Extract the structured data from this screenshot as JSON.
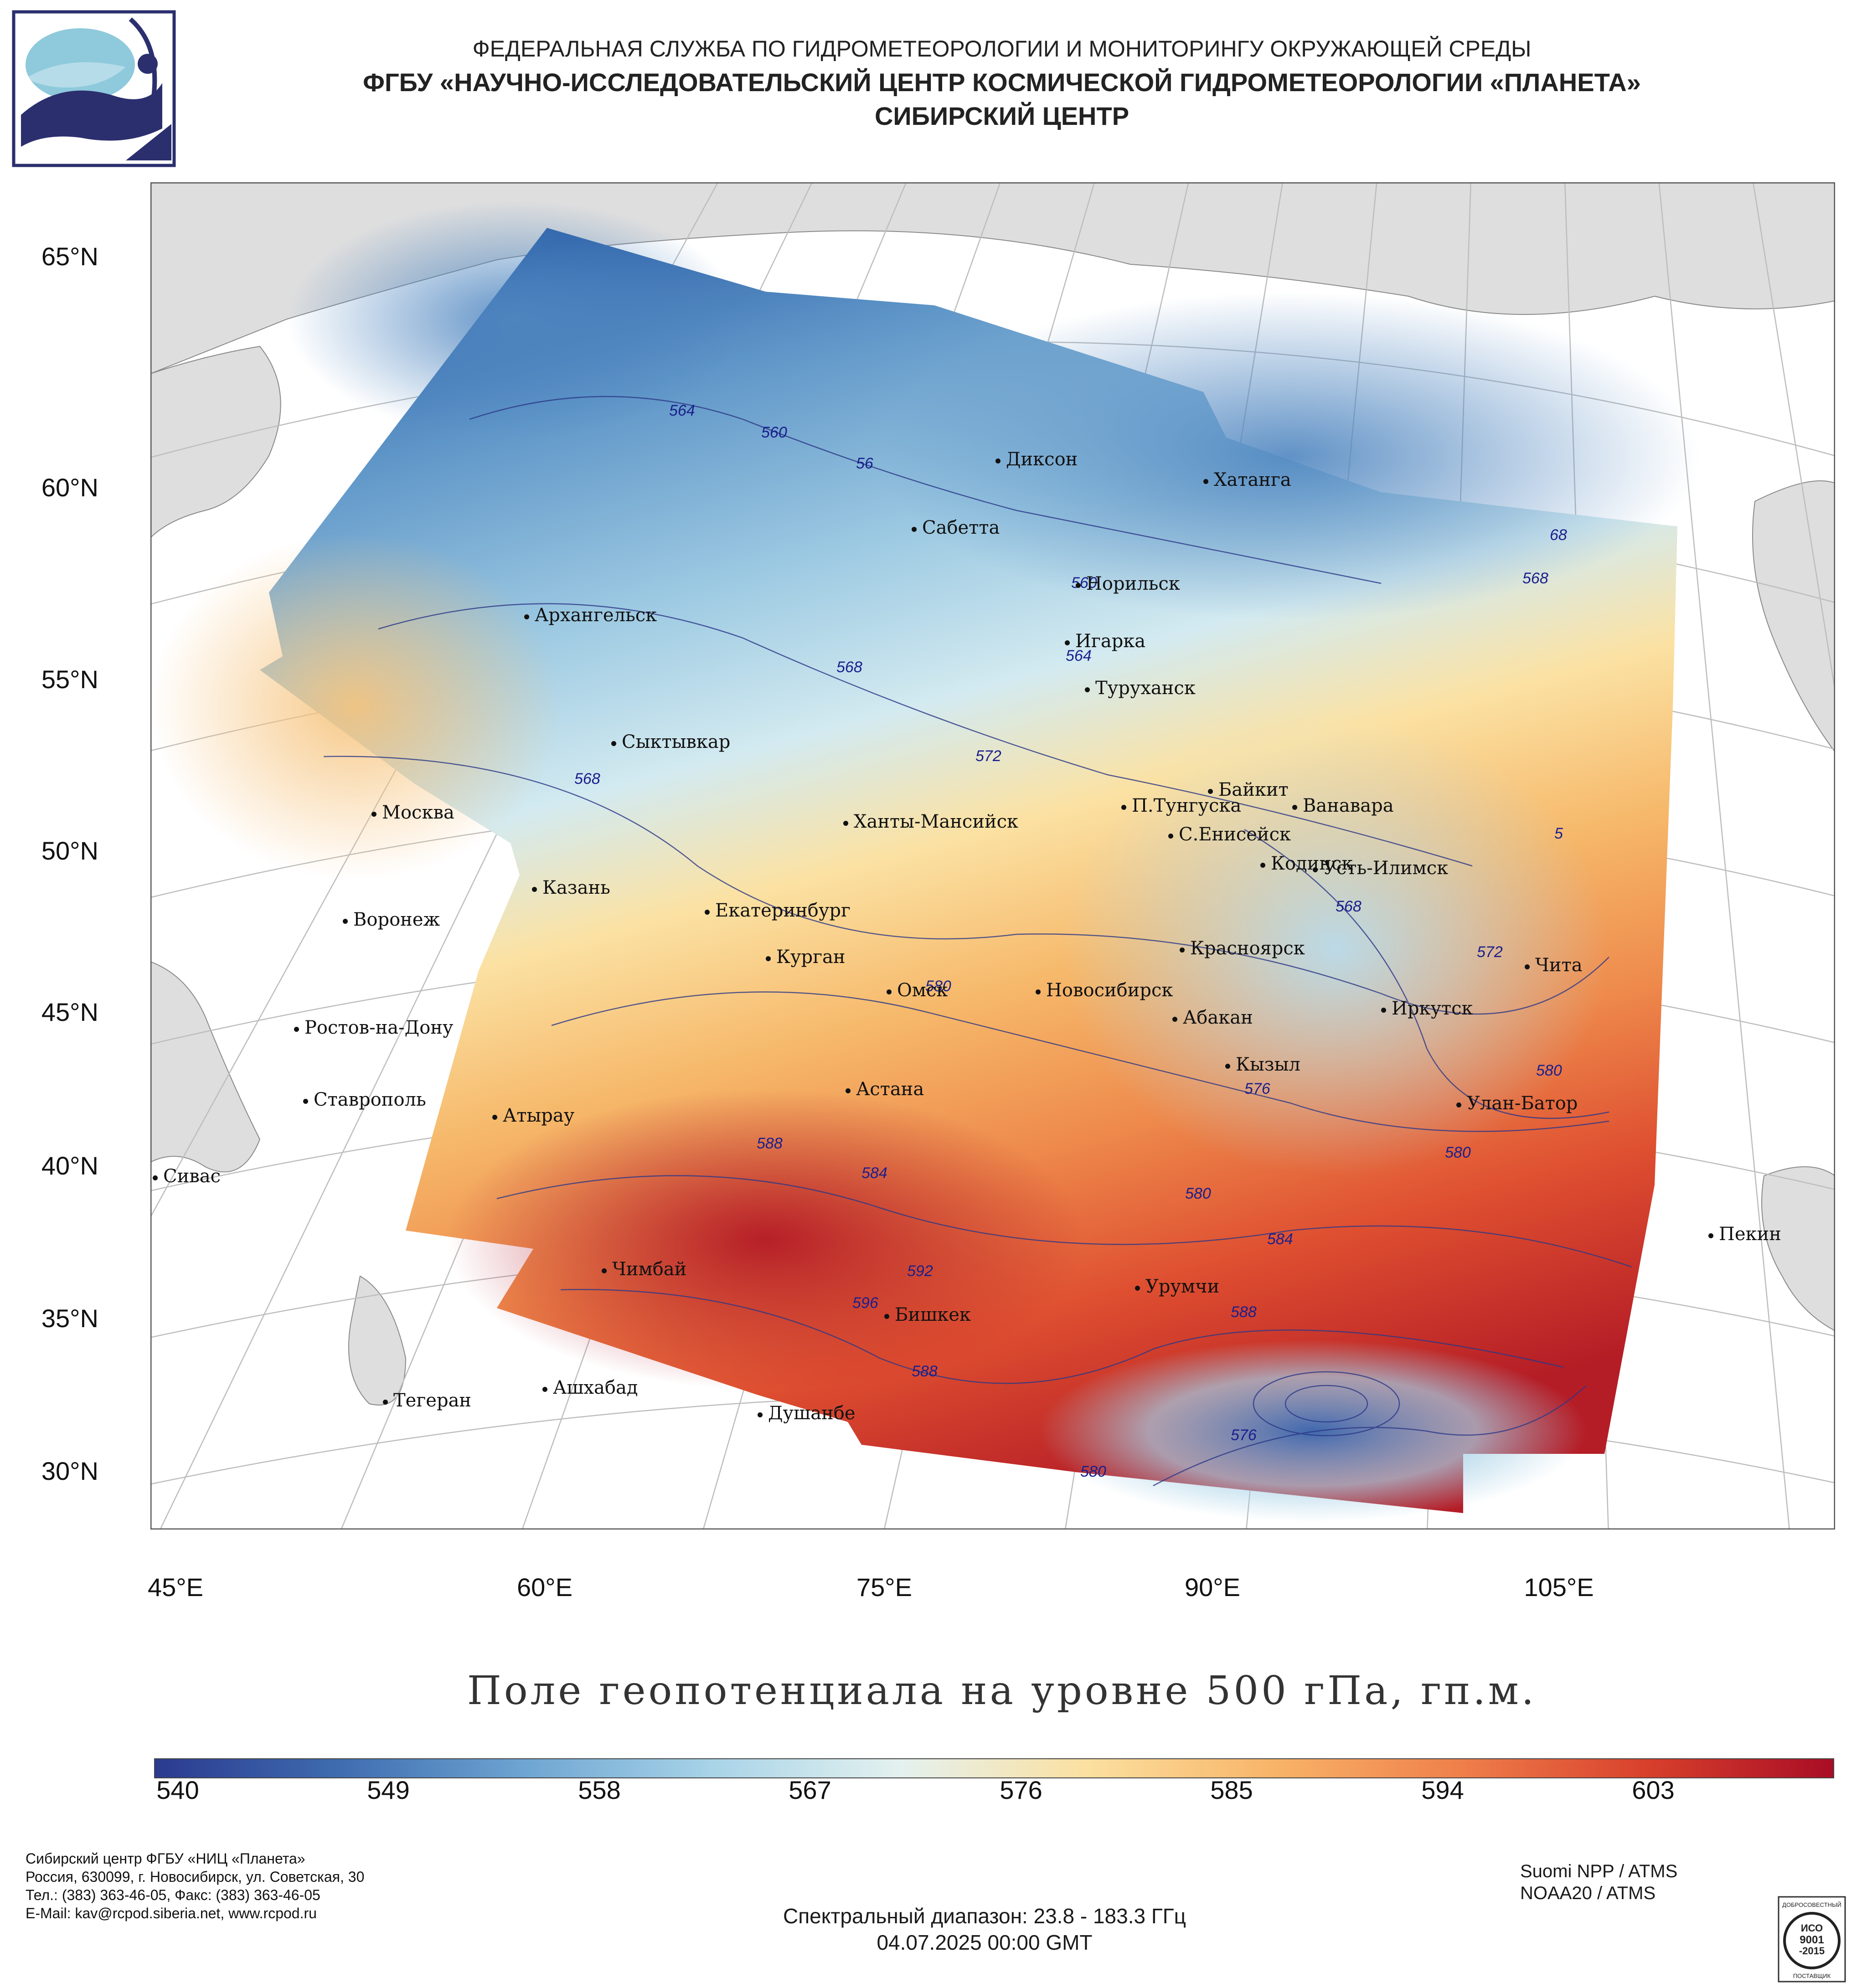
{
  "header": {
    "line1": "ФЕДЕРАЛЬНАЯ СЛУЖБА ПО ГИДРОМЕТЕОРОЛОГИИ И МОНИТОРИНГУ ОКРУЖАЮЩЕЙ СРЕДЫ",
    "line2": "ФГБУ «НАУЧНО-ИССЛЕДОВАТЕЛЬСКИЙ ЦЕНТР КОСМИЧЕСКОЙ ГИДРОМЕТЕОРОЛОГИИ «ПЛАНЕТА»",
    "line3": "СИБИРСКИЙ ЦЕНТР"
  },
  "map": {
    "title": "Поле геопотенциала на уровне 500 гПа, гп.м.",
    "lat_labels": [
      "65°N",
      "60°N",
      "55°N",
      "50°N",
      "45°N",
      "40°N",
      "35°N",
      "30°N"
    ],
    "lon_labels": [
      "45°E",
      "60°E",
      "75°E",
      "90°E",
      "105°E"
    ],
    "cities": [
      "Диксон",
      "Хатанга",
      "Сабетта",
      "Норильск",
      "Архангельск",
      "Игарка",
      "Туруханск",
      "Сыктывкар",
      "Байкит",
      "Москва",
      "П.Тунгуска",
      "Ванавара",
      "Ханты-Мансийск",
      "С.Енисейск",
      "Кодинск",
      "Усть-Илимск",
      "Казань",
      "Воронеж",
      "Екатеринбург",
      "Красноярск",
      "Курган",
      "Чита",
      "Омск",
      "Новосибирск",
      "Ростов-на-Дону",
      "Абакан",
      "Иркутск",
      "Кызыл",
      "Ставрополь",
      "Астана",
      "Улан-Батор",
      "Атырау",
      "Сивас",
      "Пекин",
      "Чимбай",
      "Урумчи",
      "Бишкек",
      "Ашхабад",
      "Тегеран",
      "Душанбе"
    ],
    "contour_labels": [
      "564",
      "560",
      "56",
      "560",
      "564",
      "568",
      "572",
      "568",
      "568",
      "568",
      "572",
      "580",
      "576",
      "580",
      "580",
      "588",
      "584",
      "580",
      "584",
      "592",
      "596",
      "588",
      "588",
      "576",
      "580",
      "68",
      "5"
    ]
  },
  "colorbar": {
    "ticks": [
      "540",
      "549",
      "558",
      "567",
      "576",
      "585",
      "594",
      "603"
    ],
    "colors": [
      "#2b3a8f",
      "#3f6db0",
      "#6fa6d2",
      "#a9d4e8",
      "#e4f1ef",
      "#fbe0a0",
      "#f8b468",
      "#ef7f4b",
      "#d8402c",
      "#a80d25"
    ]
  },
  "footer": {
    "org_lines": [
      "Сибирский центр ФГБУ «НИЦ «Планета»",
      "Россия, 630099, г. Новосибирск, ул. Советская, 30",
      "Тел.: (383) 363-46-05, Факс: (383) 363-46-05",
      "E-Mail: kav@rcpod.siberia.net, www.rcpod.ru"
    ],
    "spectral": "Спектральный диапазон: 23.8 - 183.3 ГГц",
    "datetime": "04.07.2025 00:00 GMT",
    "sensors": [
      "Suomi NPP / ATMS",
      "NOAA20 / ATMS"
    ],
    "badge": [
      "ДОБРОСОВЕСТНЫЙ",
      "ИСО",
      "9001",
      "-2015",
      "ПОСТАВЩИК"
    ]
  }
}
